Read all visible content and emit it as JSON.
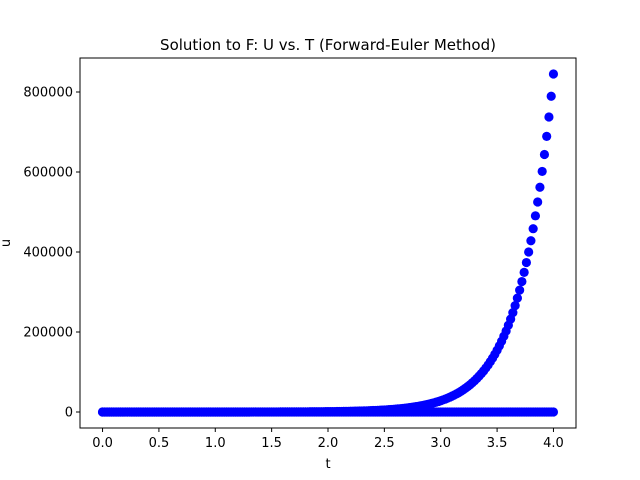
{
  "chart_data": {
    "type": "scatter",
    "title": "Solution to F: U vs. T (Forward-Euler Method)",
    "xlabel": "t",
    "ylabel": "u",
    "xlim": [
      -0.2,
      4.2
    ],
    "ylim": [
      -40000,
      885000
    ],
    "xticks": [
      0.0,
      0.5,
      1.0,
      1.5,
      2.0,
      2.5,
      3.0,
      3.5,
      4.0
    ],
    "xtick_labels": [
      "0.0",
      "0.5",
      "1.0",
      "1.5",
      "2.0",
      "2.5",
      "3.0",
      "3.5",
      "4.0"
    ],
    "yticks": [
      0,
      200000,
      400000,
      600000,
      800000
    ],
    "ytick_labels": [
      "0",
      "200000",
      "400000",
      "600000",
      "800000"
    ],
    "grid": false,
    "legend": false,
    "marker_color": "#0000ff",
    "series": [
      {
        "x_start": 0.0,
        "x_end": 4.0,
        "x_step": 0.02,
        "y_model": "exponential",
        "y_end": 845000,
        "growth_rate": 3.4
      },
      {
        "x_start": 0.0,
        "x_end": 4.0,
        "x_step": 0.02,
        "y_model": "constant",
        "y_value": 0
      }
    ]
  }
}
